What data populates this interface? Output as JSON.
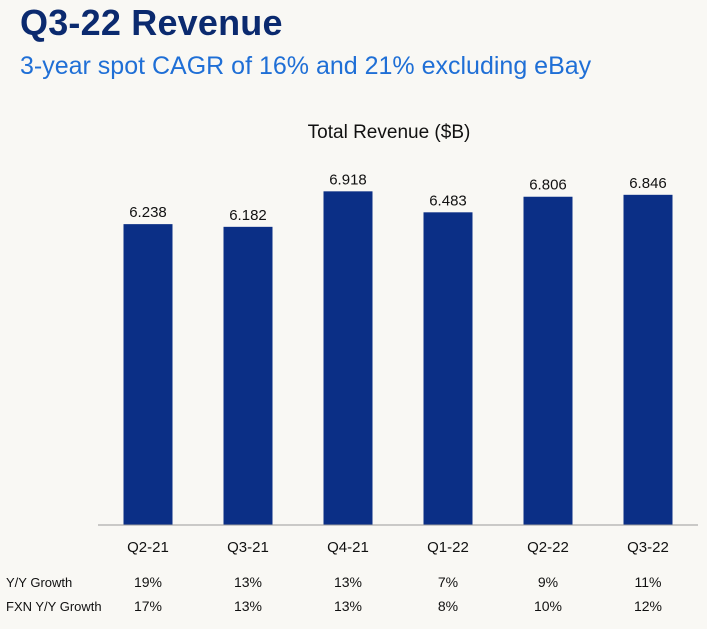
{
  "header": {
    "title": "Q3-22 Revenue",
    "subtitle": "3-year spot CAGR of 16% and 21% excluding eBay"
  },
  "chart_data": {
    "type": "bar",
    "title": "Total Revenue ($B)",
    "xlabel": "",
    "ylabel": "",
    "categories": [
      "Q2-21",
      "Q3-21",
      "Q4-21",
      "Q1-22",
      "Q2-22",
      "Q3-22"
    ],
    "values": [
      6.238,
      6.182,
      6.918,
      6.483,
      6.806,
      6.846
    ],
    "value_labels": [
      "6.238",
      "6.182",
      "6.918",
      "6.483",
      "6.806",
      "6.846"
    ],
    "ylim": [
      0,
      7.25
    ],
    "grid": false,
    "bar_color": "#0b2f86"
  },
  "growth_table": {
    "rows": [
      {
        "label": "Y/Y Growth",
        "values": [
          "19%",
          "13%",
          "13%",
          "7%",
          "9%",
          "11%"
        ]
      },
      {
        "label": "FXN Y/Y Growth",
        "values": [
          "17%",
          "13%",
          "13%",
          "8%",
          "10%",
          "12%"
        ]
      }
    ]
  },
  "colors": {
    "background": "#f9f8f4",
    "title": "#0b2a6f",
    "subtitle": "#1f6fd6",
    "bars": "#0b2f86"
  }
}
